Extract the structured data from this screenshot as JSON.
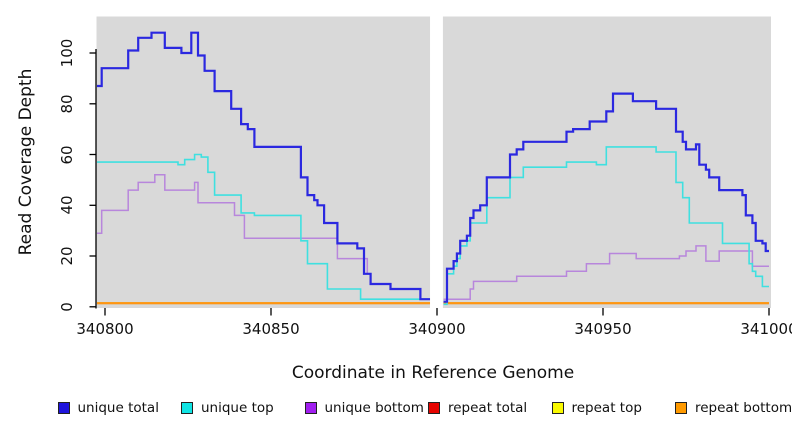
{
  "chart_data": {
    "type": "line",
    "step": true,
    "title": "",
    "xlabel": "Coordinate in Reference Genome",
    "ylabel": "Read Coverage Depth",
    "xlim": [
      340797.6,
      341000
    ],
    "ylim": [
      0,
      114
    ],
    "grid": false,
    "plot_bg": "#d9d9d9",
    "legend_position": "bottom",
    "x_ticks": [
      {
        "value": 340800,
        "label": "340800"
      },
      {
        "value": 340850,
        "label": "340850"
      },
      {
        "value": 340900,
        "label": "340900"
      },
      {
        "value": 340950,
        "label": "340950"
      },
      {
        "value": 341000,
        "label": "341000"
      }
    ],
    "y_ticks": [
      {
        "value": 0,
        "label": "0"
      },
      {
        "value": 20,
        "label": "20"
      },
      {
        "value": 40,
        "label": "40"
      },
      {
        "value": 60,
        "label": "60"
      },
      {
        "value": 80,
        "label": "80"
      },
      {
        "value": 100,
        "label": "100"
      }
    ],
    "gap": {
      "from": 340897.9,
      "to": 340901.8,
      "color": "#ffffff"
    },
    "draw_order": [
      "repeat total",
      "repeat top",
      "repeat bottom",
      "unique bottom",
      "unique top",
      "unique total"
    ],
    "series": [
      {
        "name": "unique total",
        "line_color": "#2b28e0",
        "width": 2.2,
        "segments": [
          {
            "end": 340898,
            "pts": [
              [
                340797.6,
                87
              ],
              [
                340799,
                94
              ],
              [
                340807,
                101
              ],
              [
                340810,
                106
              ],
              [
                340814,
                108
              ],
              [
                340818,
                102
              ],
              [
                340823,
                100
              ],
              [
                340826,
                108
              ],
              [
                340828,
                99
              ],
              [
                340830,
                93
              ],
              [
                340833,
                85
              ],
              [
                340838,
                78
              ],
              [
                340841,
                72
              ],
              [
                340843,
                70
              ],
              [
                340845,
                63
              ],
              [
                340859,
                51
              ],
              [
                340861,
                44
              ],
              [
                340863,
                42
              ],
              [
                340864,
                40
              ],
              [
                340866,
                33
              ],
              [
                340870,
                25
              ],
              [
                340876,
                23
              ],
              [
                340878,
                13
              ],
              [
                340880,
                9
              ],
              [
                340886,
                7
              ],
              [
                340895,
                3
              ]
            ]
          },
          {
            "end": 341000,
            "pts": [
              [
                340902,
                2
              ],
              [
                340903,
                15
              ],
              [
                340905,
                18
              ],
              [
                340906,
                21
              ],
              [
                340907,
                26
              ],
              [
                340909,
                28
              ],
              [
                340910,
                35
              ],
              [
                340911,
                38
              ],
              [
                340913,
                40
              ],
              [
                340915,
                51
              ],
              [
                340922,
                60
              ],
              [
                340924,
                62
              ],
              [
                340926,
                65
              ],
              [
                340939,
                69
              ],
              [
                340941,
                70
              ],
              [
                340946,
                73
              ],
              [
                340951,
                77
              ],
              [
                340953,
                84
              ],
              [
                340959,
                81
              ],
              [
                340966,
                78
              ],
              [
                340972,
                69
              ],
              [
                340974,
                65
              ],
              [
                340975,
                62
              ],
              [
                340978,
                64
              ],
              [
                340979,
                56
              ],
              [
                340981,
                54
              ],
              [
                340982,
                51
              ],
              [
                340985,
                46
              ],
              [
                340992,
                44
              ],
              [
                340993,
                36
              ],
              [
                340995,
                33
              ],
              [
                340996,
                26
              ],
              [
                340998,
                25
              ],
              [
                340999,
                22
              ]
            ]
          }
        ]
      },
      {
        "name": "unique top",
        "line_color": "#3fe0e0",
        "width": 1.6,
        "segments": [
          {
            "end": 340898,
            "pts": [
              [
                340797.6,
                57
              ],
              [
                340822,
                56
              ],
              [
                340824,
                58
              ],
              [
                340827,
                60
              ],
              [
                340829,
                59
              ],
              [
                340831,
                53
              ],
              [
                340833,
                44
              ],
              [
                340841,
                37
              ],
              [
                340845,
                36
              ],
              [
                340859,
                26
              ],
              [
                340861,
                17
              ],
              [
                340867,
                7
              ],
              [
                340877,
                3
              ]
            ]
          },
          {
            "end": 341000,
            "pts": [
              [
                340902,
                1
              ],
              [
                340903,
                13
              ],
              [
                340905,
                16
              ],
              [
                340906,
                19
              ],
              [
                340907,
                24
              ],
              [
                340909,
                26
              ],
              [
                340910,
                33
              ],
              [
                340915,
                43
              ],
              [
                340922,
                51
              ],
              [
                340926,
                55
              ],
              [
                340939,
                57
              ],
              [
                340948,
                56
              ],
              [
                340951,
                63
              ],
              [
                340966,
                61
              ],
              [
                340972,
                49
              ],
              [
                340974,
                43
              ],
              [
                340976,
                33
              ],
              [
                340986,
                25
              ],
              [
                340994,
                17
              ],
              [
                340995,
                14
              ],
              [
                340996,
                12
              ],
              [
                340998,
                8
              ]
            ]
          }
        ]
      },
      {
        "name": "unique bottom",
        "line_color": "#b886dc",
        "width": 1.5,
        "segments": [
          {
            "end": 340898,
            "pts": [
              [
                340797.6,
                29
              ],
              [
                340799,
                38
              ],
              [
                340807,
                46
              ],
              [
                340810,
                49
              ],
              [
                340815,
                52
              ],
              [
                340818,
                46
              ],
              [
                340827,
                49
              ],
              [
                340828,
                41
              ],
              [
                340839,
                36
              ],
              [
                340842,
                27
              ],
              [
                340870,
                19
              ],
              [
                340879,
                13
              ],
              [
                340880,
                9
              ],
              [
                340886,
                7
              ],
              [
                340895,
                3
              ]
            ]
          },
          {
            "end": 341000,
            "pts": [
              [
                340902,
                3
              ],
              [
                340910,
                7
              ],
              [
                340911,
                10
              ],
              [
                340924,
                12
              ],
              [
                340939,
                14
              ],
              [
                340945,
                17
              ],
              [
                340952,
                21
              ],
              [
                340960,
                19
              ],
              [
                340973,
                20
              ],
              [
                340975,
                22
              ],
              [
                340978,
                24
              ],
              [
                340981,
                18
              ],
              [
                340985,
                22
              ],
              [
                340995,
                16
              ]
            ]
          }
        ]
      },
      {
        "name": "repeat total",
        "line_color": "#e01000",
        "width": 1.8,
        "segments": [
          {
            "end": 340898,
            "pts": [
              [
                340797.6,
                1.4
              ]
            ]
          },
          {
            "end": 341000,
            "pts": [
              [
                340902,
                1.4
              ]
            ]
          }
        ]
      },
      {
        "name": "repeat top",
        "line_color": "#f5f500",
        "width": 1.8,
        "segments": [
          {
            "end": 340898,
            "pts": [
              [
                340797.6,
                1.4
              ]
            ]
          },
          {
            "end": 341000,
            "pts": [
              [
                340902,
                1.4
              ]
            ]
          }
        ]
      },
      {
        "name": "repeat bottom",
        "line_color": "#ff9414",
        "width": 1.8,
        "segments": [
          {
            "end": 340898,
            "pts": [
              [
                340797.6,
                1.4
              ]
            ]
          },
          {
            "end": 341000,
            "pts": [
              [
                340902,
                1.4
              ]
            ]
          }
        ]
      }
    ]
  },
  "legend": {
    "items": [
      {
        "label": "unique total",
        "color": "#1f14dc"
      },
      {
        "label": "unique top",
        "color": "#10e4e4"
      },
      {
        "label": "unique bottom",
        "color": "#a11ff0"
      },
      {
        "label": "repeat total",
        "color": "#e60400"
      },
      {
        "label": "repeat top",
        "color": "#fafa00"
      },
      {
        "label": "repeat bottom",
        "color": "#ff9a00"
      }
    ]
  }
}
